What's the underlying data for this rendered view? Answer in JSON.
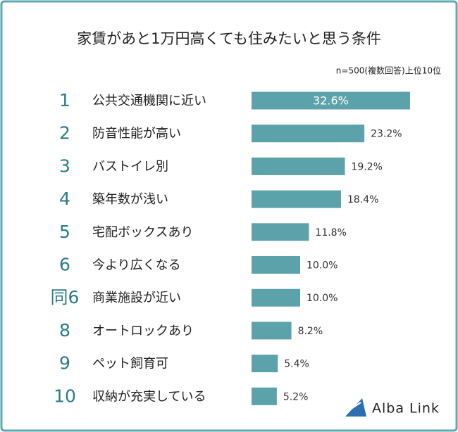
{
  "chart_data": {
    "type": "bar",
    "orientation": "horizontal",
    "title": "家賃があと1万円高くても住みたいと思う条件",
    "subtitle": "n=500(複数回答)上位10位",
    "ranks": [
      "1",
      "2",
      "3",
      "4",
      "5",
      "6",
      "同6",
      "8",
      "9",
      "10"
    ],
    "categories": [
      "公共交通機関に近い",
      "防音性能が高い",
      "バストイレ別",
      "築年数が浅い",
      "宅配ボックスあり",
      "今より広くなる",
      "商業施設が近い",
      "オートロックあり",
      "ペット飼育可",
      "収納が充実している"
    ],
    "values": [
      32.6,
      23.2,
      19.2,
      18.4,
      11.8,
      10.0,
      10.0,
      8.2,
      5.4,
      5.2
    ],
    "value_labels": [
      "32.6%",
      "23.2%",
      "19.2%",
      "18.4%",
      "11.8%",
      "10.0%",
      "10.0%",
      "8.2%",
      "5.4%",
      "5.2%"
    ],
    "color": "#5ba2ab",
    "logo": "Alba Link"
  }
}
